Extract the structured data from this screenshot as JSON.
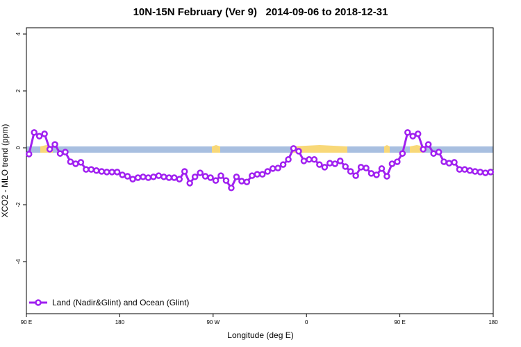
{
  "chart_data": {
    "type": "line",
    "title": "10N-15N February (Ver 9)   2014-09-06 to 2018-12-31",
    "x_label": "Longitude (deg E)",
    "y_label": "XCO2 - MLO trend (ppm)",
    "xlim": [
      90,
      540
    ],
    "ylim": [
      -5.83,
      4.22
    ],
    "xticks": [
      {
        "value": 90,
        "label": "90 E"
      },
      180,
      {
        "value": 270,
        "label": "90 W"
      },
      {
        "value": 360,
        "label": "0"
      },
      {
        "value": 450,
        "label": "90 E"
      },
      {
        "value": 540,
        "label": "180"
      }
    ],
    "yticks": [
      4,
      2,
      0,
      -2,
      -4
    ],
    "legend": "bottom-left",
    "x": [
      92.5,
      97.5,
      102.5,
      107.5,
      112.5,
      117.5,
      122.5,
      127.5,
      132.5,
      137.5,
      142.5,
      147.5,
      152.5,
      157.5,
      162.5,
      167.5,
      172.5,
      177.5,
      182.5,
      187.5,
      192.5,
      197.5,
      202.5,
      207.5,
      212.5,
      217.5,
      222.5,
      227.5,
      232.5,
      237.5,
      242.5,
      247.5,
      252.5,
      257.5,
      262.5,
      267.5,
      272.5,
      277.5,
      282.5,
      287.5,
      292.5,
      297.5,
      302.5,
      307.5,
      312.5,
      317.5,
      322.5,
      327.5,
      332.5,
      337.5,
      342.5,
      347.5,
      352.5,
      357.5,
      362.5,
      367.5,
      372.5,
      377.5,
      382.5,
      387.5,
      392.5,
      397.5,
      402.5,
      407.5,
      412.5,
      417.5,
      422.5,
      427.5,
      432.5,
      437.5,
      442.5,
      447.5,
      452.5,
      457.5,
      462.5,
      467.5,
      472.5,
      477.5,
      482.5,
      487.5,
      492.5,
      497.5,
      502.5,
      507.5,
      512.5,
      517.5,
      522.5,
      527.5,
      532.5,
      537.5
    ],
    "series": [
      {
        "name": "Land (Nadir&Glint) and Ocean (Glint)",
        "color": "#a020f0",
        "values": [
          -0.22,
          0.54,
          0.41,
          0.49,
          -0.05,
          0.12,
          -0.2,
          -0.15,
          -0.49,
          -0.56,
          -0.51,
          -0.76,
          -0.76,
          -0.8,
          -0.83,
          -0.85,
          -0.85,
          -0.85,
          -0.95,
          -1.0,
          -1.1,
          -1.05,
          -1.02,
          -1.05,
          -1.02,
          -0.98,
          -1.02,
          -1.05,
          -1.05,
          -1.1,
          -0.83,
          -1.24,
          -1.02,
          -0.88,
          -1.0,
          -1.05,
          -1.15,
          -0.98,
          -1.15,
          -1.41,
          -1.02,
          -1.17,
          -1.2,
          -0.98,
          -0.93,
          -0.93,
          -0.83,
          -0.73,
          -0.71,
          -0.59,
          -0.41,
          -0.02,
          -0.12,
          -0.46,
          -0.41,
          -0.41,
          -0.59,
          -0.68,
          -0.54,
          -0.56,
          -0.46,
          -0.66,
          -0.83,
          -0.98,
          -0.68,
          -0.71,
          -0.9,
          -0.95,
          -0.73,
          -1.0,
          -0.56,
          -0.49,
          -0.2,
          0.54,
          0.41,
          0.49,
          -0.05,
          0.12,
          -0.2,
          -0.15,
          -0.49,
          -0.54,
          -0.51,
          -0.76,
          -0.76,
          -0.8,
          -0.83,
          -0.85,
          -0.88,
          -0.85
        ]
      }
    ]
  }
}
